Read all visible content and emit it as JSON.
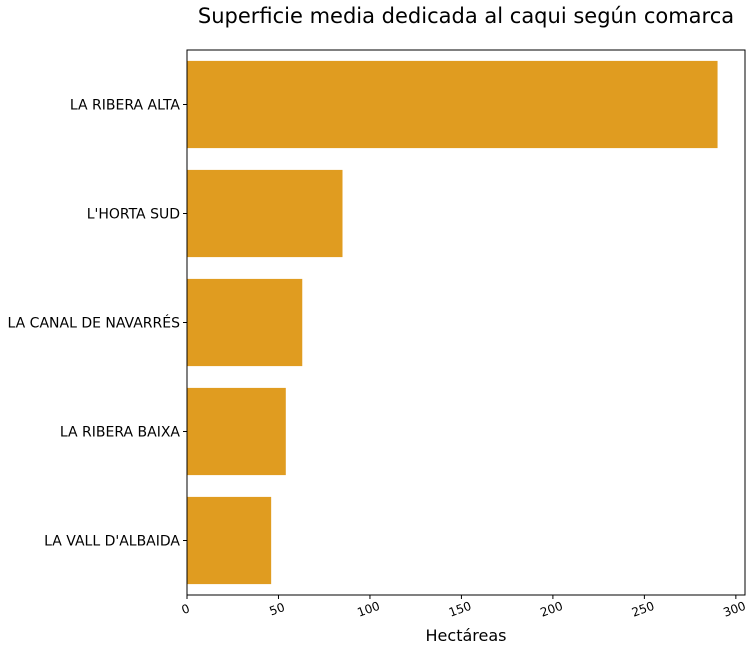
{
  "chart_data": {
    "type": "bar",
    "orientation": "horizontal",
    "title": "Superficie media dedicada al caqui según comarca",
    "xlabel": "Hectáreas",
    "ylabel": "",
    "categories": [
      "LA RIBERA ALTA",
      "L'HORTA SUD",
      "LA CANAL DE NAVARRÉS",
      "LA RIBERA BAIXA",
      "LA VALL D'ALBAIDA"
    ],
    "values": [
      290,
      85,
      63,
      54,
      46
    ],
    "xlim": [
      0,
      305
    ],
    "xticks": [
      "0",
      "50",
      "100",
      "150",
      "200",
      "250",
      "300"
    ],
    "bar_color": "#e09c20",
    "grid": false,
    "legend": "none"
  }
}
